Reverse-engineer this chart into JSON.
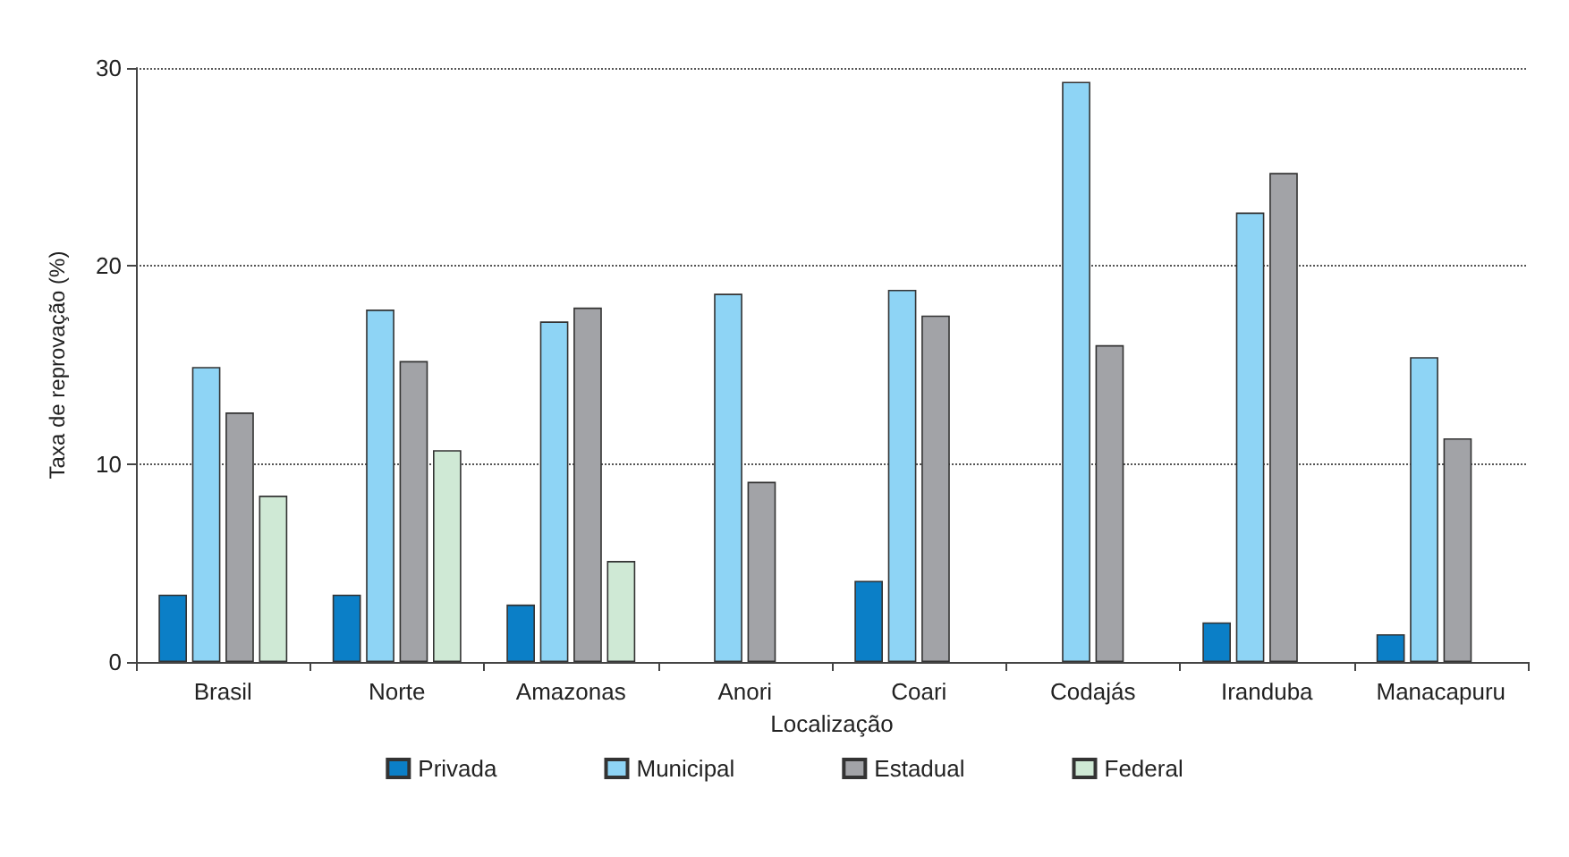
{
  "chart_data": {
    "type": "bar",
    "xlabel": "Localização",
    "ylabel": "Taxa de reprovação (%)",
    "categories": [
      "Brasil",
      "Norte",
      "Amazonas",
      "Anori",
      "Coari",
      "Codajás",
      "Iranduba",
      "Manacapuru"
    ],
    "series": [
      {
        "name": "Privada",
        "color": "#0b7fc7",
        "values": [
          3.4,
          3.4,
          2.9,
          null,
          4.1,
          null,
          2.0,
          1.4
        ]
      },
      {
        "name": "Municipal",
        "color": "#8ed4f5",
        "values": [
          14.9,
          17.8,
          17.2,
          18.6,
          18.8,
          29.3,
          22.7,
          15.4
        ]
      },
      {
        "name": "Estadual",
        "color": "#a2a3a7",
        "values": [
          12.6,
          15.2,
          17.9,
          9.1,
          17.5,
          16.0,
          24.7,
          11.3
        ]
      },
      {
        "name": "Federal",
        "color": "#cfe9d5",
        "values": [
          8.4,
          10.7,
          5.1,
          null,
          null,
          null,
          null,
          null
        ]
      }
    ],
    "ylim": [
      0,
      30
    ],
    "yticks": [
      0,
      10,
      20,
      30
    ],
    "grid": "y",
    "legend": "bottom"
  }
}
